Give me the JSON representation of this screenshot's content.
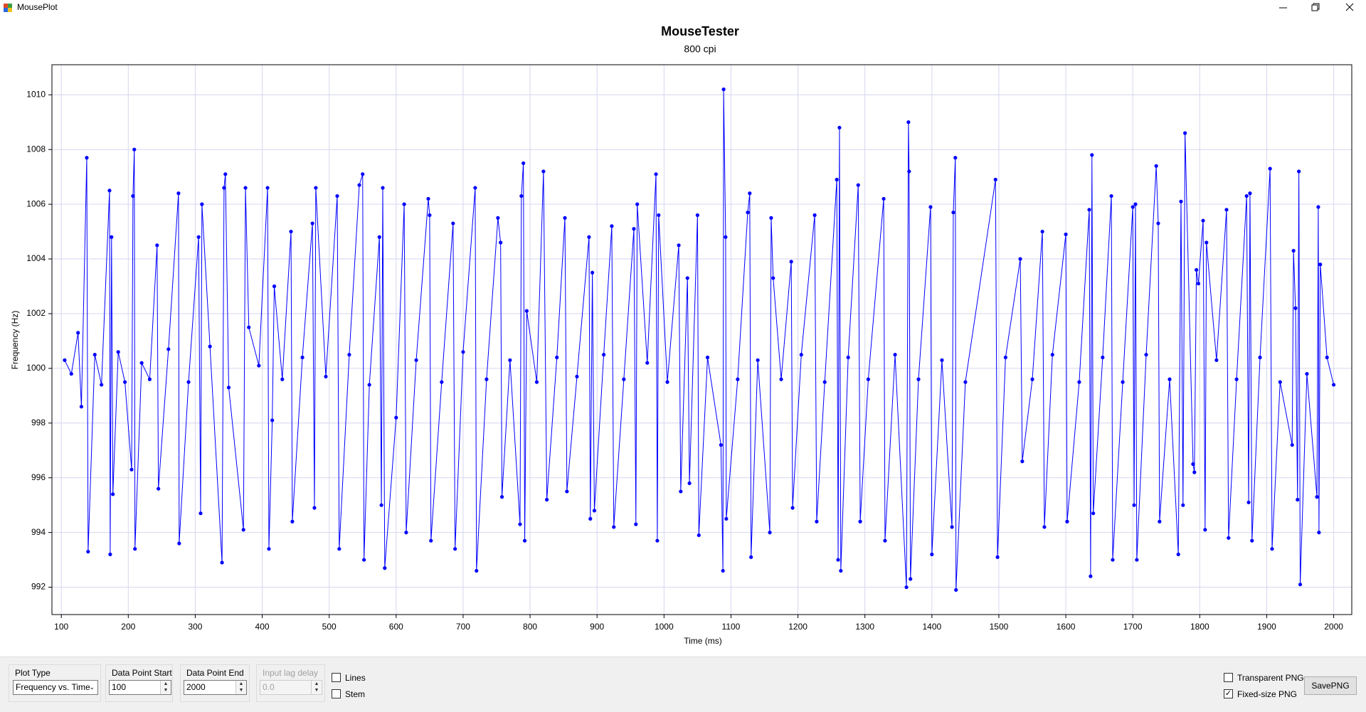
{
  "window": {
    "title": "MousePlot"
  },
  "controls": {
    "plot_type": {
      "label": "Plot Type",
      "value": "Frequency vs. Time"
    },
    "data_point_start": {
      "label": "Data Point Start",
      "value": "100"
    },
    "data_point_end": {
      "label": "Data Point End",
      "value": "2000"
    },
    "input_lag_delay": {
      "label": "Input lag delay",
      "value": "0.0"
    },
    "lines": {
      "label": "Lines",
      "checked": false
    },
    "stem": {
      "label": "Stem",
      "checked": false
    },
    "transparent_png": {
      "label": "Transparent PNG",
      "checked": false
    },
    "fixed_size_png": {
      "label": "Fixed-size PNG",
      "checked": true
    },
    "save_button": "SavePNG"
  },
  "chart_data": {
    "type": "scatter",
    "title": "MouseTester",
    "subtitle": "800 cpi",
    "x_label": "Time (ms)",
    "y_label": "Frequency (Hz)",
    "color": "#0000ff",
    "connect": true,
    "grid": true,
    "xlim": [
      86,
      2027
    ],
    "ylim": [
      991,
      1011.1
    ],
    "xticks": [
      100,
      200,
      300,
      400,
      500,
      600,
      700,
      800,
      900,
      1000,
      1100,
      1200,
      1300,
      1400,
      1500,
      1600,
      1700,
      1800,
      1900,
      2000
    ],
    "yticks": [
      992,
      994,
      996,
      998,
      1000,
      1002,
      1004,
      1006,
      1008,
      1010
    ],
    "x": [
      105,
      115,
      125,
      130,
      138,
      140,
      150,
      160,
      172,
      173,
      175,
      177,
      185,
      195,
      205,
      207,
      209,
      210,
      220,
      232,
      243,
      245,
      260,
      275,
      276,
      290,
      305,
      308,
      310,
      322,
      340,
      343,
      345,
      350,
      372,
      375,
      380,
      395,
      408,
      410,
      415,
      418,
      430,
      443,
      445,
      460,
      475,
      478,
      480,
      495,
      512,
      515,
      530,
      545,
      550,
      552,
      560,
      575,
      578,
      580,
      583,
      600,
      612,
      615,
      630,
      648,
      650,
      652,
      668,
      685,
      688,
      700,
      718,
      720,
      735,
      752,
      756,
      758,
      770,
      785,
      787,
      790,
      792,
      795,
      810,
      820,
      825,
      840,
      852,
      855,
      870,
      888,
      890,
      893,
      896,
      910,
      922,
      925,
      940,
      955,
      958,
      960,
      975,
      988,
      990,
      992,
      1005,
      1022,
      1025,
      1035,
      1038,
      1050,
      1052,
      1065,
      1085,
      1088,
      1089,
      1092,
      1093,
      1110,
      1125,
      1128,
      1130,
      1140,
      1158,
      1160,
      1163,
      1175,
      1190,
      1192,
      1205,
      1225,
      1228,
      1240,
      1258,
      1260,
      1262,
      1264,
      1275,
      1290,
      1293,
      1305,
      1328,
      1330,
      1345,
      1362,
      1365,
      1366,
      1368,
      1380,
      1398,
      1400,
      1415,
      1430,
      1432,
      1435,
      1436,
      1450,
      1495,
      1498,
      1510,
      1532,
      1535,
      1550,
      1565,
      1568,
      1580,
      1600,
      1602,
      1620,
      1635,
      1637,
      1639,
      1641,
      1655,
      1668,
      1670,
      1685,
      1700,
      1702,
      1704,
      1706,
      1720,
      1735,
      1738,
      1740,
      1755,
      1768,
      1772,
      1775,
      1778,
      1790,
      1792,
      1795,
      1798,
      1805,
      1808,
      1810,
      1825,
      1840,
      1843,
      1855,
      1870,
      1873,
      1875,
      1878,
      1890,
      1905,
      1908,
      1920,
      1938,
      1940,
      1943,
      1946,
      1948,
      1950,
      1960,
      1975,
      1977,
      1978,
      1980,
      1990,
      2000
    ],
    "values": [
      1000.3,
      999.8,
      1001.3,
      998.6,
      1007.7,
      993.3,
      1000.5,
      999.4,
      1006.5,
      993.2,
      1004.8,
      995.4,
      1000.6,
      999.5,
      996.3,
      1006.3,
      1008.0,
      993.4,
      1000.2,
      999.6,
      1004.5,
      995.6,
      1000.7,
      1006.4,
      993.6,
      999.5,
      1004.8,
      994.7,
      1006.0,
      1000.8,
      992.9,
      1006.6,
      1007.1,
      999.3,
      994.1,
      1006.6,
      1001.5,
      1000.1,
      1006.6,
      993.4,
      998.1,
      1003.0,
      999.6,
      1005.0,
      994.4,
      1000.4,
      1005.3,
      994.9,
      1006.6,
      999.7,
      1006.3,
      993.4,
      1000.5,
      1006.7,
      1007.1,
      993.0,
      999.4,
      1004.8,
      995.0,
      1006.6,
      992.7,
      998.2,
      1006.0,
      994.0,
      1000.3,
      1006.2,
      1005.6,
      993.7,
      999.5,
      1005.3,
      993.4,
      1000.6,
      1006.6,
      992.6,
      999.6,
      1005.5,
      1004.6,
      995.3,
      1000.3,
      994.3,
      1006.3,
      1007.5,
      993.7,
      1002.1,
      999.5,
      1007.2,
      995.2,
      1000.4,
      1005.5,
      995.5,
      999.7,
      1004.8,
      994.5,
      1003.5,
      994.8,
      1000.5,
      1005.2,
      994.2,
      999.6,
      1005.1,
      994.3,
      1006.0,
      1000.2,
      1007.1,
      993.7,
      1005.6,
      999.5,
      1004.5,
      995.5,
      1003.3,
      995.8,
      1005.6,
      993.9,
      1000.4,
      997.2,
      992.6,
      1010.2,
      1004.8,
      994.5,
      999.6,
      1005.7,
      1006.4,
      993.1,
      1000.3,
      994.0,
      1005.5,
      1003.3,
      999.6,
      1003.9,
      994.9,
      1000.5,
      1005.6,
      994.4,
      999.5,
      1006.9,
      993.0,
      1008.8,
      992.6,
      1000.4,
      1006.7,
      994.4,
      999.6,
      1006.2,
      993.7,
      1000.5,
      992.0,
      1009.0,
      1007.2,
      992.3,
      999.6,
      1005.9,
      993.2,
      1000.3,
      994.2,
      1005.7,
      1007.7,
      991.9,
      999.5,
      1006.9,
      993.1,
      1000.4,
      1004.0,
      996.6,
      999.6,
      1005.0,
      994.2,
      1000.5,
      1004.9,
      994.4,
      999.5,
      1005.8,
      992.4,
      1007.8,
      994.7,
      1000.4,
      1006.3,
      993.0,
      999.5,
      1005.9,
      995.0,
      1006.0,
      993.0,
      1000.5,
      1007.4,
      1005.3,
      994.4,
      999.6,
      993.2,
      1006.1,
      995.0,
      1008.6,
      996.5,
      996.2,
      1003.6,
      1003.1,
      1005.4,
      994.1,
      1004.6,
      1000.3,
      1005.8,
      993.8,
      999.6,
      1006.3,
      995.1,
      1006.4,
      993.7,
      1000.4,
      1007.3,
      993.4,
      999.5,
      997.2,
      1004.3,
      1002.2,
      995.2,
      1007.2,
      992.1,
      999.8,
      995.3,
      1005.9,
      994.0,
      1003.8,
      1000.4,
      999.4
    ]
  }
}
